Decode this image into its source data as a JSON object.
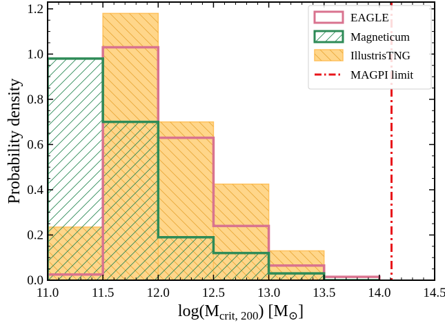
{
  "chart_data": {
    "type": "histogram",
    "title": "",
    "xlabel": {
      "main": "log(M",
      "sub": "crit, 200",
      "unit_open": ") [M",
      "unit_symbol": "⊙",
      "unit_close": "]"
    },
    "ylabel": "Probability density",
    "xlim": [
      11.0,
      14.5
    ],
    "ylim": [
      0.0,
      1.23
    ],
    "x_ticks": [
      11.0,
      11.5,
      12.0,
      12.5,
      13.0,
      13.5,
      14.0,
      14.5
    ],
    "x_tick_labels": [
      "11.0",
      "11.5",
      "12.0",
      "12.5",
      "13.0",
      "13.5",
      "14.0",
      "14.5"
    ],
    "y_ticks": [
      0.0,
      0.2,
      0.4,
      0.6,
      0.8,
      1.0,
      1.2
    ],
    "y_tick_labels": [
      "0.0",
      "0.2",
      "0.4",
      "0.6",
      "0.8",
      "1.0",
      "1.2"
    ],
    "bin_edges": [
      11.0,
      11.5,
      12.0,
      12.5,
      13.0,
      13.5,
      14.0
    ],
    "series": [
      {
        "name": "IllustrisTNG",
        "style": "filled-hatched",
        "fill_color": "#ffd68a",
        "edge_color": "#ffc15c",
        "hatch_color": "#e8a93a",
        "values": [
          0.235,
          1.18,
          0.7,
          0.425,
          0.13,
          0.0
        ]
      },
      {
        "name": "EAGLE",
        "style": "step-outline",
        "edge_color": "#d9738f",
        "values": [
          0.025,
          1.03,
          0.63,
          0.24,
          0.065,
          0.015
        ]
      },
      {
        "name": "Magneticum",
        "style": "step-hatched",
        "edge_color": "#2e8b57",
        "hatch_color": "#2e8b57",
        "values": [
          0.98,
          0.7,
          0.19,
          0.12,
          0.03,
          0.0
        ]
      }
    ],
    "vertical_lines": [
      {
        "name": "MAGPI limit",
        "x": 14.11,
        "color": "#e8141a",
        "style": "dash-dot"
      }
    ],
    "legend": {
      "position": "top-right",
      "entries": [
        "EAGLE",
        "Magneticum",
        "IllustrisTNG",
        "MAGPI limit"
      ]
    },
    "grid": false
  }
}
